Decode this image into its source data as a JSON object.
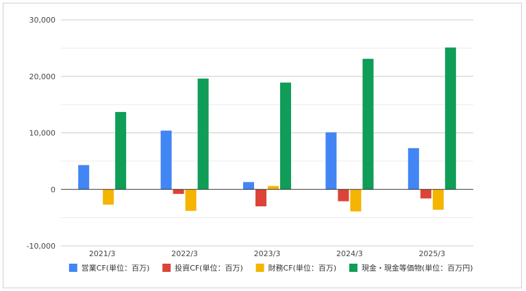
{
  "chart_data": {
    "type": "bar",
    "title": "",
    "xlabel": "",
    "ylabel": "",
    "categories": [
      "2021/3",
      "2022/3",
      "2023/3",
      "2024/3",
      "2025/3"
    ],
    "ylim": [
      -10000,
      30000
    ],
    "y_ticks": [
      30000,
      20000,
      10000,
      0,
      -10000
    ],
    "y_tick_labels": [
      "30,000",
      "20,000",
      "10,000",
      "0",
      "-10,000"
    ],
    "grid": true,
    "legend_position": "bottom",
    "series": [
      {
        "name": "営業CF(単位：百万)",
        "color": "#4285f4",
        "values": [
          4300,
          10400,
          1300,
          10100,
          7300
        ]
      },
      {
        "name": "投資CF(単位：百万)",
        "color": "#db4437",
        "values": [
          0,
          -800,
          -3000,
          -2100,
          -1600
        ]
      },
      {
        "name": "財務CF(単位：百万)",
        "color": "#f4b400",
        "values": [
          -2700,
          -3800,
          600,
          -3900,
          -3600
        ]
      },
      {
        "name": "現金・現金等価物(単位：百万円)",
        "color": "#0f9d58",
        "values": [
          13700,
          19600,
          18900,
          23100,
          25100
        ]
      }
    ]
  }
}
